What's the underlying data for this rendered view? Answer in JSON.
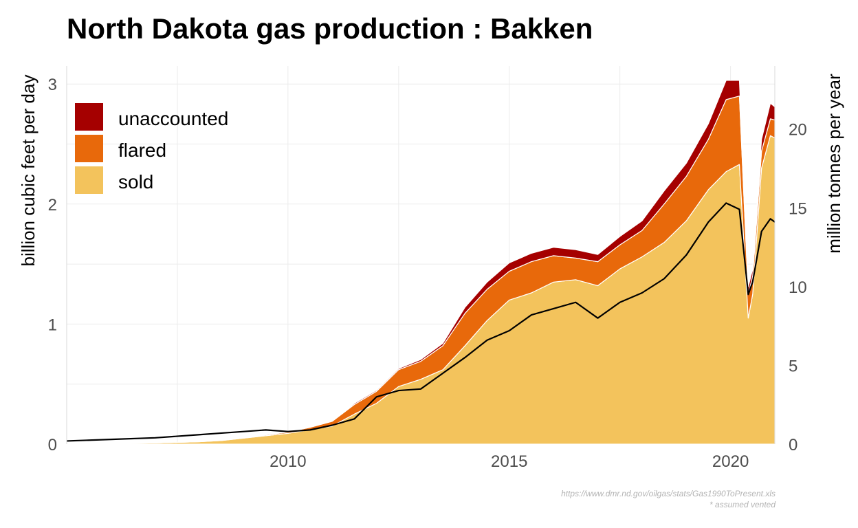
{
  "chart_data": {
    "type": "area",
    "title": "North Dakota gas production : Bakken",
    "ylabel": "billion cubic feet per day",
    "y2label": "million tonnes per year",
    "xlim": [
      2005.0,
      2021.0
    ],
    "ylim": [
      0,
      3.15
    ],
    "y2lim": [
      0,
      24
    ],
    "x_ticks": [
      2010,
      2015,
      2020
    ],
    "y_ticks": [
      0,
      1,
      2,
      3
    ],
    "y2_ticks": [
      0,
      5,
      10,
      15,
      20
    ],
    "grid": true,
    "stacked": true,
    "legend_position": "top-left",
    "colors": {
      "unaccounted": "#a50000",
      "flared": "#e8690b",
      "sold": "#f3c35c",
      "line": "#000000"
    },
    "x": [
      2005.0,
      2006.0,
      2007.0,
      2008.0,
      2008.5,
      2009.0,
      2009.5,
      2010.0,
      2010.5,
      2011.0,
      2011.5,
      2012.0,
      2012.5,
      2013.0,
      2013.5,
      2014.0,
      2014.5,
      2015.0,
      2015.5,
      2016.0,
      2016.5,
      2017.0,
      2017.5,
      2018.0,
      2018.5,
      2019.0,
      2019.5,
      2019.9,
      2020.2,
      2020.4,
      2020.5,
      2020.7,
      2020.9,
      2021.0
    ],
    "series": [
      {
        "name": "sold",
        "values": [
          0.0,
          0.005,
          0.01,
          0.02,
          0.03,
          0.05,
          0.07,
          0.09,
          0.12,
          0.15,
          0.25,
          0.34,
          0.48,
          0.54,
          0.62,
          0.82,
          1.03,
          1.2,
          1.26,
          1.35,
          1.37,
          1.32,
          1.46,
          1.56,
          1.68,
          1.86,
          2.12,
          2.27,
          2.33,
          1.05,
          1.25,
          2.3,
          2.57,
          2.55
        ]
      },
      {
        "name": "flared",
        "values": [
          0.0,
          0.0,
          0.0,
          0.0,
          0.003,
          0.005,
          0.008,
          0.01,
          0.02,
          0.04,
          0.08,
          0.1,
          0.14,
          0.15,
          0.2,
          0.27,
          0.26,
          0.24,
          0.26,
          0.22,
          0.18,
          0.2,
          0.2,
          0.22,
          0.32,
          0.37,
          0.42,
          0.6,
          0.57,
          0.2,
          0.15,
          0.14,
          0.14,
          0.15
        ]
      },
      {
        "name": "unaccounted",
        "values": [
          0.0,
          0.0,
          0.0,
          0.0,
          0.0,
          0.0,
          0.0,
          0.0,
          0.003,
          0.005,
          0.01,
          0.01,
          0.01,
          0.015,
          0.02,
          0.05,
          0.06,
          0.07,
          0.07,
          0.07,
          0.07,
          0.06,
          0.07,
          0.08,
          0.11,
          0.11,
          0.13,
          0.16,
          0.13,
          0.06,
          0.06,
          0.1,
          0.13,
          0.11
        ]
      },
      {
        "name": "line",
        "axis": "secondary",
        "values": [
          0.2,
          0.3,
          0.4,
          0.6,
          0.7,
          0.8,
          0.9,
          0.8,
          0.9,
          1.2,
          1.6,
          3.0,
          3.4,
          3.5,
          4.5,
          5.5,
          6.6,
          7.2,
          8.2,
          8.6,
          9.0,
          8.0,
          9.0,
          9.6,
          10.5,
          12.0,
          14.1,
          15.3,
          14.9,
          9.5,
          10.3,
          13.5,
          14.3,
          14.1
        ]
      }
    ]
  },
  "footer": {
    "source": "https://www.dmr.nd.gov/oilgas/stats/Gas1990ToPresent.xls",
    "note": "* assumed vented"
  }
}
